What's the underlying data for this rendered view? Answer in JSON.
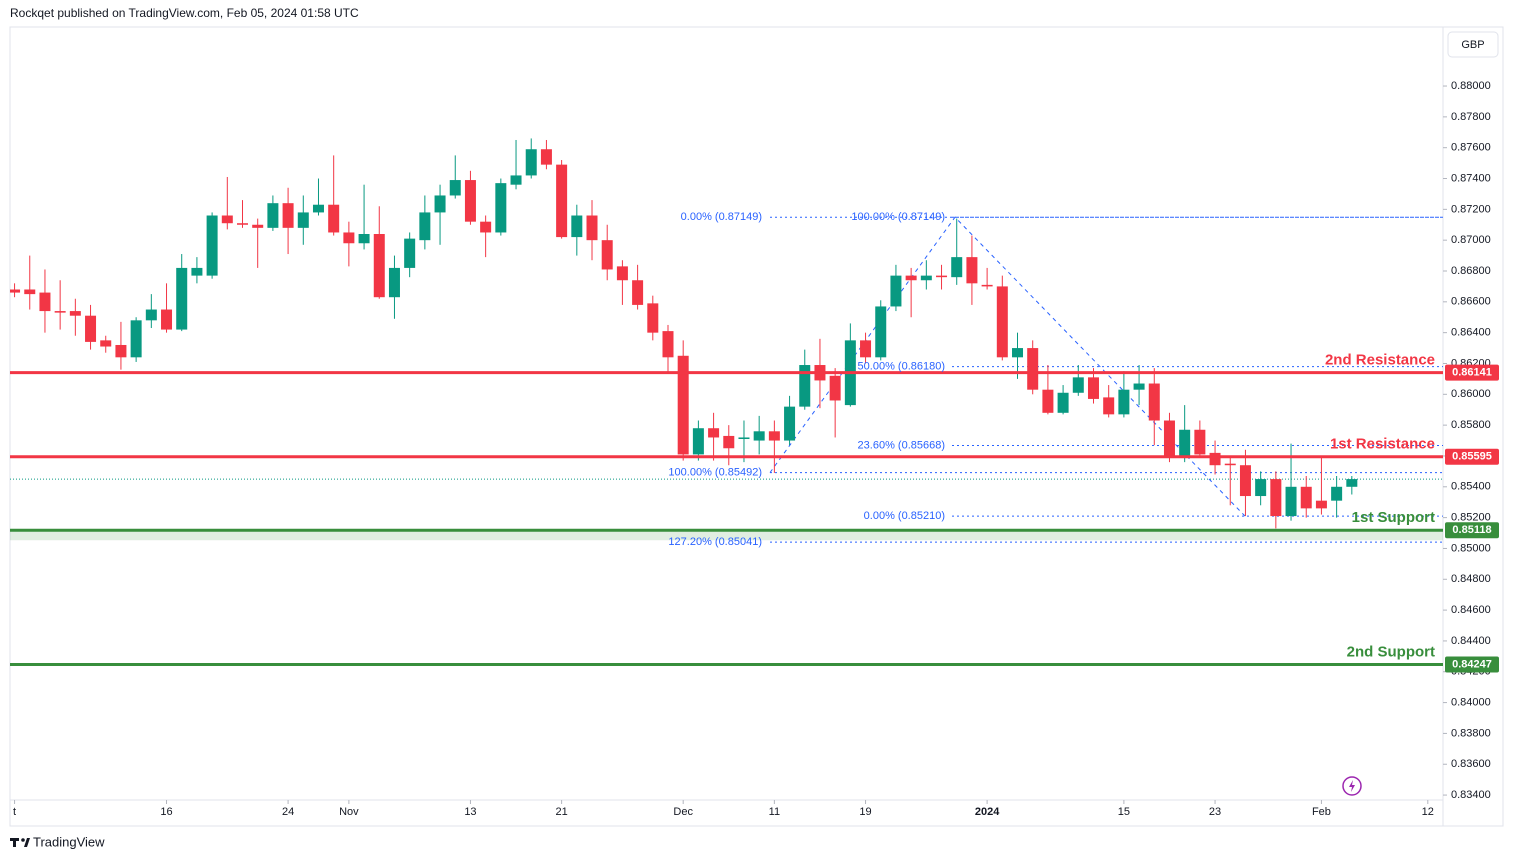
{
  "chart_data": {
    "type": "candlestick",
    "title": "Rockqet published on TradingView.com, Feb 05, 2024 01:58 UTC",
    "currency": "GBP",
    "brand": "TradingView",
    "up_color": "#089981",
    "down_color": "#f23645",
    "xlim": [
      -0.3,
      94
    ],
    "xticks": [
      {
        "value": 0,
        "label": "t"
      },
      {
        "value": 10,
        "label": "16"
      },
      {
        "value": 18,
        "label": "24"
      },
      {
        "value": 22,
        "label": "Nov"
      },
      {
        "value": 30,
        "label": "13"
      },
      {
        "value": 36,
        "label": "21"
      },
      {
        "value": 44,
        "label": "Dec"
      },
      {
        "value": 50,
        "label": "11"
      },
      {
        "value": 56,
        "label": "19"
      },
      {
        "value": 64,
        "label": "2024"
      },
      {
        "value": 73,
        "label": "15"
      },
      {
        "value": 79,
        "label": "23"
      },
      {
        "value": 86,
        "label": "Feb"
      },
      {
        "value": 93,
        "label": "12"
      }
    ],
    "ylim": [
      0.83368,
      0.88383
    ],
    "yticks": [
      {
        "value": 0.834,
        "label": "0.83400"
      },
      {
        "value": 0.836,
        "label": "0.83600"
      },
      {
        "value": 0.838,
        "label": "0.83800"
      },
      {
        "value": 0.84,
        "label": "0.84000"
      },
      {
        "value": 0.842,
        "label": "0.84200"
      },
      {
        "value": 0.844,
        "label": "0.84400"
      },
      {
        "value": 0.846,
        "label": "0.84600"
      },
      {
        "value": 0.848,
        "label": "0.84800"
      },
      {
        "value": 0.85,
        "label": "0.85000"
      },
      {
        "value": 0.852,
        "label": "0.85200"
      },
      {
        "value": 0.854,
        "label": "0.85400"
      },
      {
        "value": 0.856,
        "label": "0.85600"
      },
      {
        "value": 0.858,
        "label": "0.85800"
      },
      {
        "value": 0.86,
        "label": "0.86000"
      },
      {
        "value": 0.862,
        "label": "0.86200"
      },
      {
        "value": 0.864,
        "label": "0.86400"
      },
      {
        "value": 0.866,
        "label": "0.86600"
      },
      {
        "value": 0.868,
        "label": "0.86800"
      },
      {
        "value": 0.87,
        "label": "0.87000"
      },
      {
        "value": 0.872,
        "label": "0.87200"
      },
      {
        "value": 0.874,
        "label": "0.87400"
      },
      {
        "value": 0.876,
        "label": "0.87600"
      },
      {
        "value": 0.878,
        "label": "0.87800"
      },
      {
        "value": 0.88,
        "label": "0.88000"
      }
    ],
    "open": [
      0.8668,
      0.8668,
      0.8666,
      0.8654,
      0.8654,
      0.8651,
      0.8635,
      0.8632,
      0.8624,
      0.8648,
      0.8655,
      0.8642,
      0.8677,
      0.8677,
      0.8716,
      0.8711,
      0.871,
      0.8708,
      0.8724,
      0.8708,
      0.8718,
      0.8723,
      0.8705,
      0.8698,
      0.8704,
      0.8663,
      0.8682,
      0.87,
      0.8718,
      0.8729,
      0.8739,
      0.8712,
      0.8705,
      0.8736,
      0.8742,
      0.8759,
      0.8749,
      0.8702,
      0.8716,
      0.87,
      0.8683,
      0.8674,
      0.8659,
      0.8641,
      0.8625,
      0.8561,
      0.8578,
      0.8573,
      0.8571,
      0.857,
      0.8576,
      0.857,
      0.8592,
      0.8619,
      0.8612,
      0.8593,
      0.8635,
      0.8624,
      0.8657,
      0.8677,
      0.8674,
      0.8677,
      0.8676,
      0.8689,
      0.8671,
      0.867,
      0.8624,
      0.863,
      0.8603,
      0.8588,
      0.8601,
      0.8611,
      0.8598,
      0.8587,
      0.8603,
      0.8607,
      0.8583,
      0.8559,
      0.8577,
      0.8562,
      0.8555,
      0.8554,
      0.8534,
      0.8545,
      0.8521,
      0.854,
      0.8531,
      0.8531,
      0.854
    ],
    "high": [
      0.8672,
      0.869,
      0.8681,
      0.8674,
      0.8662,
      0.8658,
      0.8638,
      0.8647,
      0.865,
      0.8665,
      0.8672,
      0.8691,
      0.8689,
      0.8718,
      0.8741,
      0.8726,
      0.8714,
      0.8729,
      0.8734,
      0.8729,
      0.874,
      0.8755,
      0.8712,
      0.8736,
      0.8722,
      0.869,
      0.8705,
      0.8729,
      0.8736,
      0.8755,
      0.8745,
      0.8716,
      0.874,
      0.8765,
      0.8766,
      0.8765,
      0.8752,
      0.8723,
      0.8726,
      0.871,
      0.8687,
      0.8684,
      0.8664,
      0.8645,
      0.8635,
      0.8583,
      0.8588,
      0.858,
      0.8583,
      0.8586,
      0.8583,
      0.8599,
      0.8629,
      0.8636,
      0.8617,
      0.8646,
      0.864,
      0.8661,
      0.8684,
      0.8682,
      0.8687,
      0.8684,
      0.8714,
      0.8703,
      0.8682,
      0.8677,
      0.864,
      0.8635,
      0.8619,
      0.8606,
      0.8619,
      0.8617,
      0.8606,
      0.8615,
      0.8619,
      0.8617,
      0.8588,
      0.8593,
      0.8583,
      0.857,
      0.856,
      0.8564,
      0.855,
      0.855,
      0.8568,
      0.8547,
      0.8559,
      0.8547,
      0.8547
    ],
    "low": [
      0.8663,
      0.8655,
      0.864,
      0.8642,
      0.8638,
      0.8629,
      0.8627,
      0.8616,
      0.8621,
      0.8643,
      0.864,
      0.8641,
      0.8672,
      0.8675,
      0.8707,
      0.8708,
      0.8682,
      0.8706,
      0.8691,
      0.8697,
      0.8716,
      0.8703,
      0.8683,
      0.8694,
      0.8662,
      0.8649,
      0.8676,
      0.8694,
      0.8697,
      0.8727,
      0.871,
      0.8689,
      0.8703,
      0.8733,
      0.874,
      0.8746,
      0.8701,
      0.869,
      0.8687,
      0.8674,
      0.8658,
      0.8655,
      0.8635,
      0.8614,
      0.8557,
      0.8557,
      0.8557,
      0.8554,
      0.8556,
      0.8561,
      0.8549,
      0.8567,
      0.859,
      0.8591,
      0.8572,
      0.8592,
      0.862,
      0.8622,
      0.8654,
      0.865,
      0.8668,
      0.8668,
      0.8671,
      0.8658,
      0.8668,
      0.8622,
      0.861,
      0.86,
      0.8587,
      0.8587,
      0.8599,
      0.8594,
      0.8585,
      0.8585,
      0.8593,
      0.8567,
      0.8556,
      0.8556,
      0.8559,
      0.8548,
      0.8528,
      0.8521,
      0.8528,
      0.8513,
      0.8518,
      0.852,
      0.8522,
      0.852,
      0.8535
    ],
    "close": [
      0.8666,
      0.8665,
      0.8654,
      0.8653,
      0.8651,
      0.8634,
      0.8631,
      0.8624,
      0.8648,
      0.8655,
      0.8642,
      0.8682,
      0.8682,
      0.8716,
      0.8711,
      0.871,
      0.8708,
      0.8724,
      0.8708,
      0.8718,
      0.8723,
      0.8705,
      0.8698,
      0.8704,
      0.8663,
      0.8682,
      0.8701,
      0.8718,
      0.8729,
      0.8739,
      0.8712,
      0.8705,
      0.8737,
      0.8742,
      0.8759,
      0.8749,
      0.8702,
      0.8716,
      0.87,
      0.8681,
      0.8674,
      0.8658,
      0.864,
      0.8624,
      0.8561,
      0.8578,
      0.8572,
      0.8565,
      0.8572,
      0.8576,
      0.857,
      0.8592,
      0.8619,
      0.8609,
      0.8596,
      0.8635,
      0.8624,
      0.8657,
      0.8677,
      0.8674,
      0.8677,
      0.8676,
      0.8689,
      0.8672,
      0.867,
      0.8624,
      0.863,
      0.8603,
      0.8588,
      0.8601,
      0.8611,
      0.8597,
      0.8587,
      0.8603,
      0.8607,
      0.8583,
      0.8559,
      0.8577,
      0.8561,
      0.8554,
      0.8554,
      0.8534,
      0.8545,
      0.8521,
      0.854,
      0.8526,
      0.8526,
      0.854,
      0.8545
    ],
    "levels": [
      {
        "name": "2nd Resistance",
        "value": 0.86141,
        "color": "#f23645"
      },
      {
        "name": "1st Resistance",
        "value": 0.85595,
        "color": "#f23645"
      },
      {
        "name": "1st Support",
        "value": 0.85118,
        "color": "#388e3c"
      },
      {
        "name": "2nd Support",
        "value": 0.84247,
        "color": "#388e3c"
      }
    ],
    "fibs": [
      {
        "color": "#2962ff",
        "levels": [
          {
            "label": "0.00% (0.87149)",
            "value": 0.87149
          },
          {
            "label": "100.00% (0.85492)",
            "value": 0.85492
          },
          {
            "label": "127.20% (0.85041)",
            "value": 0.85041
          }
        ]
      },
      {
        "color": "#2962ff",
        "levels": [
          {
            "label": "100.00% (0.87149)",
            "value": 0.87149
          },
          {
            "label": "50.00% (0.86180)",
            "value": 0.8618
          },
          {
            "label": "23.60% (0.85668)",
            "value": 0.85668
          },
          {
            "label": "0.00% (0.85210)",
            "value": 0.8521
          }
        ]
      }
    ]
  }
}
